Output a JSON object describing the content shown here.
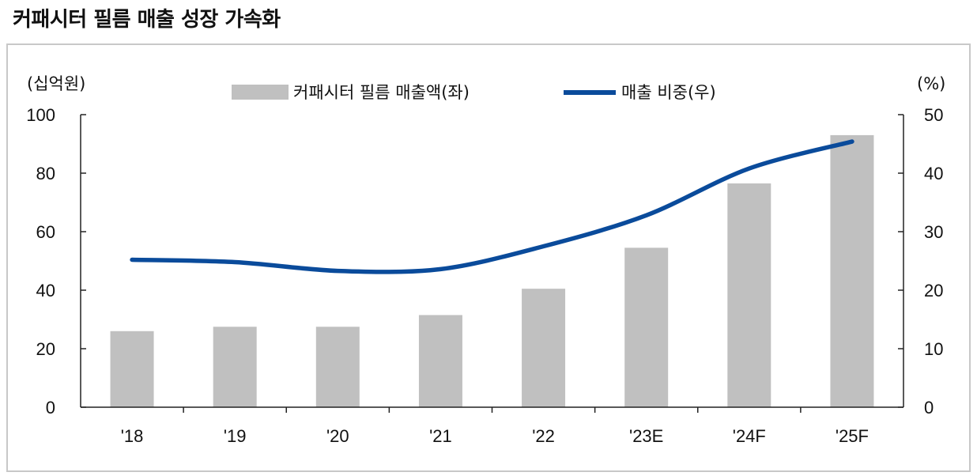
{
  "title": "커패시터 필름 매출 성장 가속화",
  "chart_data": {
    "type": "bar",
    "categories": [
      "'18",
      "'19",
      "'20",
      "'21",
      "'22",
      "'23E",
      "'24F",
      "'25F"
    ],
    "series": [
      {
        "name": "커패시터 필름 매출액(좌)",
        "type": "bar",
        "axis": "left",
        "values": [
          26,
          27.5,
          27.5,
          31.5,
          40.5,
          54.5,
          76.5,
          93
        ]
      },
      {
        "name": "매출 비중(우)",
        "type": "line",
        "axis": "right",
        "values": [
          25.2,
          24.8,
          23.3,
          23.6,
          27.5,
          32.8,
          40.8,
          45.4
        ]
      }
    ],
    "y_left": {
      "label": "(십억원)",
      "ylim": [
        0,
        100
      ],
      "ticks": [
        0,
        20,
        40,
        60,
        80,
        100
      ]
    },
    "y_right": {
      "label": "(%)",
      "ylim": [
        0,
        50
      ],
      "ticks": [
        0,
        10,
        20,
        30,
        40,
        50
      ]
    },
    "legend_position": "top-center",
    "grid": false,
    "colors": {
      "bar": "#c0c0c0",
      "line": "#0a4b9b",
      "axis": "#222222",
      "frame": "#c8c8c8"
    }
  }
}
